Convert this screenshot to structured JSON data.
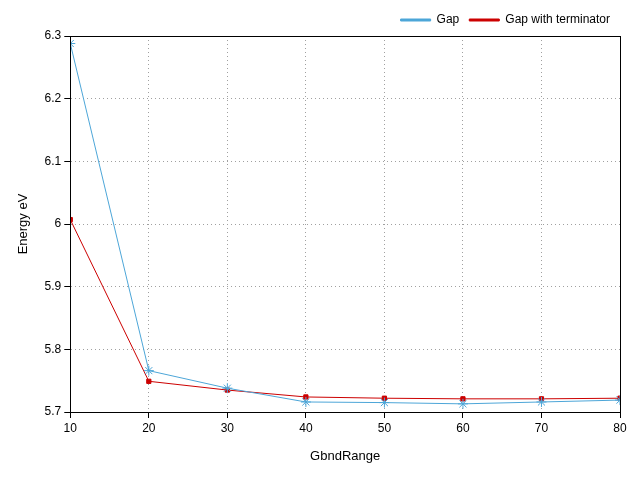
{
  "chart_data": {
    "type": "line",
    "x_label": "GbndRange",
    "y_label": "Energy eV",
    "x": [
      10,
      20,
      30,
      40,
      50,
      60,
      70,
      80
    ],
    "series": [
      {
        "name": "Gap",
        "color": "#4da6d8",
        "marker": "star",
        "line_style": "solid",
        "values": [
          6.288,
          5.766,
          5.738,
          5.716,
          5.715,
          5.713,
          5.716,
          5.719
        ]
      },
      {
        "name": "Gap with terminator",
        "color": "#cc0000",
        "marker": "square",
        "line_style": "solid",
        "values": [
          6.007,
          5.749,
          5.735,
          5.724,
          5.722,
          5.721,
          5.721,
          5.722
        ]
      }
    ],
    "xlim": [
      10,
      80
    ],
    "xticks": [
      10,
      20,
      30,
      40,
      50,
      60,
      70,
      80
    ],
    "ylim": [
      5.7,
      6.3
    ],
    "yticks": [
      5.7,
      5.8,
      5.9,
      6,
      6.1,
      6.2,
      6.3
    ],
    "grid": true,
    "legend": "top-right"
  }
}
